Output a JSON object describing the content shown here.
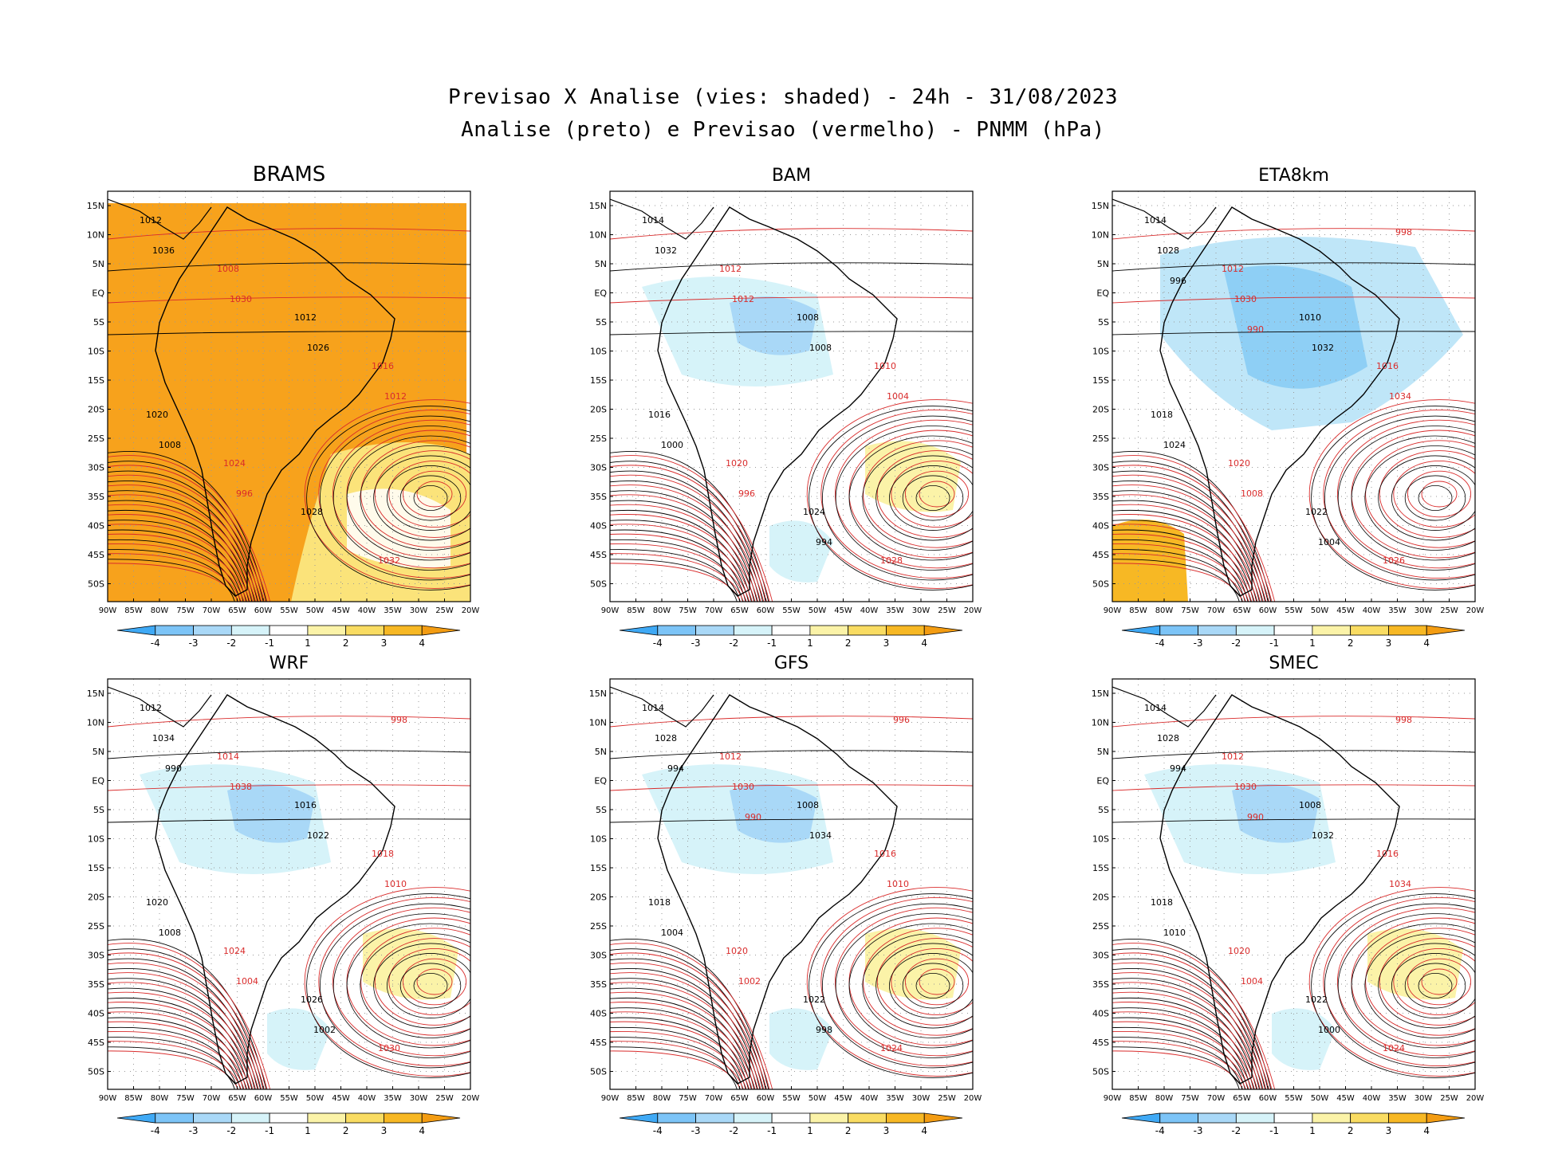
{
  "header": {
    "line1": "Previsao X Analise (vies: shaded) - 24h - 31/08/2023",
    "line2": "Analise (preto) e Previsao (vermelho) - PNMM (hPa)"
  },
  "axes": {
    "lon_labels": [
      "90W",
      "85W",
      "80W",
      "75W",
      "70W",
      "65W",
      "60W",
      "55W",
      "50W",
      "45W",
      "40W",
      "35W",
      "30W",
      "25W",
      "20W"
    ],
    "lat_labels": [
      "15N",
      "10N",
      "5N",
      "EQ",
      "5S",
      "10S",
      "15S",
      "20S",
      "25S",
      "30S",
      "35S",
      "40S",
      "45S",
      "50S"
    ]
  },
  "colorbar": {
    "ticks": [
      "-4",
      "-3",
      "-2",
      "-1",
      "1",
      "2",
      "3",
      "4"
    ],
    "colors": [
      "#3fa9f5",
      "#7cc4f7",
      "#a9d8f7",
      "#d6f3f9",
      "#ffffff",
      "#fbf3a8",
      "#f9dc62",
      "#f7b824",
      "#f39c12"
    ]
  },
  "panels": [
    {
      "name": "BRAMS",
      "bias": "warm",
      "labels": [
        "1012",
        "1008",
        "1012",
        "1016",
        "1020",
        "1024",
        "1028",
        "1032",
        "1036",
        "1030",
        "1026",
        "1012",
        "1008",
        "996"
      ]
    },
    {
      "name": "BAM",
      "bias": "mixed",
      "labels": [
        "1014",
        "1012",
        "1008",
        "1010",
        "1016",
        "1020",
        "1024",
        "1028",
        "1032",
        "1012",
        "1008",
        "1004",
        "1000",
        "996",
        "994"
      ]
    },
    {
      "name": "ETA8km",
      "bias": "cool",
      "labels": [
        "1014",
        "1012",
        "1010",
        "1016",
        "1018",
        "1020",
        "1022",
        "1026",
        "1028",
        "1030",
        "1032",
        "1034",
        "1024",
        "1008",
        "1004",
        "998",
        "996",
        "990"
      ]
    },
    {
      "name": "WRF",
      "bias": "mixed",
      "labels": [
        "1012",
        "1014",
        "1016",
        "1018",
        "1020",
        "1024",
        "1026",
        "1030",
        "1034",
        "1038",
        "1022",
        "1010",
        "1008",
        "1004",
        "1002",
        "998",
        "990"
      ]
    },
    {
      "name": "GFS",
      "bias": "mixed",
      "labels": [
        "1014",
        "1012",
        "1008",
        "1016",
        "1018",
        "1020",
        "1022",
        "1024",
        "1028",
        "1030",
        "1034",
        "1010",
        "1004",
        "1002",
        "998",
        "996",
        "994",
        "990"
      ]
    },
    {
      "name": "SMEC",
      "bias": "mixed",
      "labels": [
        "1014",
        "1012",
        "1008",
        "1016",
        "1018",
        "1020",
        "1022",
        "1024",
        "1028",
        "1030",
        "1032",
        "1034",
        "1010",
        "1004",
        "1000",
        "998",
        "994",
        "990"
      ]
    }
  ]
}
